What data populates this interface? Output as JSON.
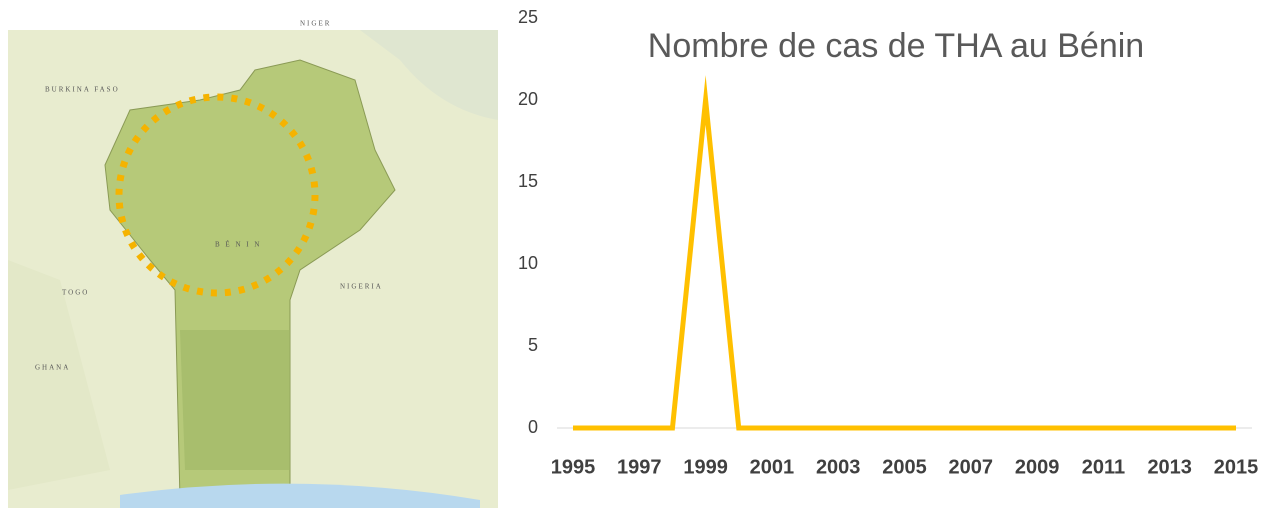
{
  "chart_data": {
    "type": "line",
    "title": "Nombre de cas de THA au Bénin",
    "x": [
      1995,
      1996,
      1997,
      1998,
      1999,
      2000,
      2001,
      2002,
      2003,
      2004,
      2005,
      2006,
      2007,
      2008,
      2009,
      2010,
      2011,
      2012,
      2013,
      2014,
      2015
    ],
    "values": [
      0,
      0,
      0,
      0,
      20,
      0,
      0,
      0,
      0,
      0,
      0,
      0,
      0,
      0,
      0,
      0,
      0,
      0,
      0,
      0,
      0
    ],
    "color": "#ffc000",
    "xlim": [
      1995,
      2015
    ],
    "xticks": [
      1995,
      1997,
      1999,
      2001,
      2003,
      2005,
      2007,
      2009,
      2011,
      2013,
      2015
    ],
    "ylim": [
      0,
      25
    ],
    "yticks": [
      0,
      5,
      10,
      15,
      20,
      25
    ],
    "grid": false
  },
  "map": {
    "labels": [
      "NIGER",
      "BURKINA FASO",
      "NIGERIA",
      "TOGO",
      "GHANA",
      "B É N I N"
    ]
  }
}
